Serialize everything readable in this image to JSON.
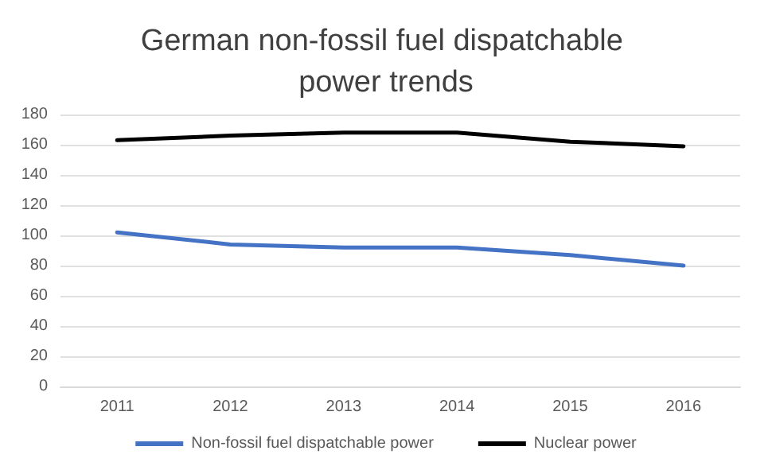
{
  "chart_data": {
    "type": "line",
    "title": "German non-fossil fuel dispatchable power trends",
    "categories": [
      "2011",
      "2012",
      "2013",
      "2014",
      "2015",
      "2016"
    ],
    "series": [
      {
        "name": "Non-fossil fuel dispatchable power",
        "color": "#4472c4",
        "values": [
          102,
          94,
          92,
          92,
          87,
          80
        ]
      },
      {
        "name": "Nuclear power",
        "color": "#000000",
        "values": [
          163,
          166,
          168,
          168,
          162,
          159
        ]
      }
    ],
    "ylim": [
      0,
      180
    ],
    "yticks": [
      0,
      20,
      40,
      60,
      80,
      100,
      120,
      140,
      160,
      180
    ],
    "grid": "y",
    "legend": "bottom",
    "marker": "none",
    "line_style": "solid"
  }
}
